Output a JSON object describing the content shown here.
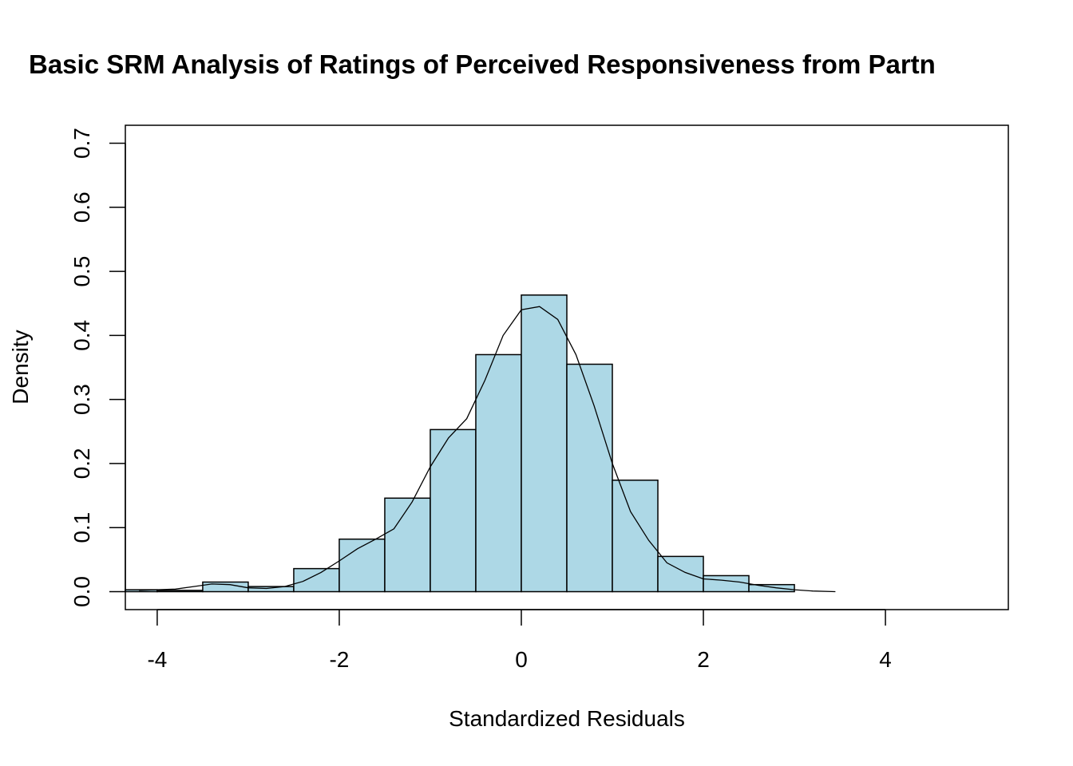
{
  "chart_data": {
    "type": "bar",
    "title": "Basic SRM Analysis of Ratings of Perceived Responsiveness from Partn",
    "xlabel": "Standardized Residuals",
    "ylabel": "Density",
    "xlim": [
      -4.35,
      5.35
    ],
    "ylim": [
      -0.028,
      0.728
    ],
    "x_ticks": [
      -4,
      -2,
      0,
      2,
      4
    ],
    "x_tick_labels": [
      "-4",
      "-2",
      "0",
      "2",
      "4"
    ],
    "y_ticks": [
      0.0,
      0.1,
      0.2,
      0.3,
      0.4,
      0.5,
      0.6,
      0.7
    ],
    "y_tick_labels": [
      "0.0",
      "0.1",
      "0.2",
      "0.3",
      "0.4",
      "0.5",
      "0.6",
      "0.7"
    ],
    "bar_fill": "#add8e6",
    "bar_stroke": "#000000",
    "bins": [
      {
        "start": -4.5,
        "end": -4.0,
        "density": 0.003
      },
      {
        "start": -4.0,
        "end": -3.5,
        "density": 0.002
      },
      {
        "start": -3.5,
        "end": -3.0,
        "density": 0.015
      },
      {
        "start": -3.0,
        "end": -2.5,
        "density": 0.008
      },
      {
        "start": -2.5,
        "end": -2.0,
        "density": 0.036
      },
      {
        "start": -2.0,
        "end": -1.5,
        "density": 0.082
      },
      {
        "start": -1.5,
        "end": -1.0,
        "density": 0.146
      },
      {
        "start": -1.0,
        "end": -0.5,
        "density": 0.253
      },
      {
        "start": -0.5,
        "end": 0.0,
        "density": 0.37
      },
      {
        "start": 0.0,
        "end": 0.5,
        "density": 0.463
      },
      {
        "start": 0.5,
        "end": 1.0,
        "density": 0.355
      },
      {
        "start": 1.0,
        "end": 1.5,
        "density": 0.174
      },
      {
        "start": 1.5,
        "end": 2.0,
        "density": 0.055
      },
      {
        "start": 2.0,
        "end": 2.5,
        "density": 0.025
      },
      {
        "start": 2.5,
        "end": 3.0,
        "density": 0.011
      }
    ],
    "density_curve": {
      "x": [
        -4.6,
        -4.2,
        -3.8,
        -3.6,
        -3.4,
        -3.2,
        -3.0,
        -2.8,
        -2.6,
        -2.4,
        -2.2,
        -2.0,
        -1.8,
        -1.6,
        -1.4,
        -1.2,
        -1.0,
        -0.8,
        -0.6,
        -0.4,
        -0.2,
        0.0,
        0.2,
        0.4,
        0.6,
        0.8,
        1.0,
        1.2,
        1.4,
        1.6,
        1.8,
        2.0,
        2.2,
        2.4,
        2.6,
        2.8,
        3.0,
        3.2,
        3.45
      ],
      "y": [
        0.001,
        0.002,
        0.004,
        0.008,
        0.012,
        0.011,
        0.006,
        0.005,
        0.008,
        0.016,
        0.03,
        0.048,
        0.067,
        0.082,
        0.098,
        0.14,
        0.195,
        0.24,
        0.27,
        0.33,
        0.4,
        0.44,
        0.445,
        0.425,
        0.37,
        0.29,
        0.2,
        0.125,
        0.08,
        0.045,
        0.03,
        0.02,
        0.018,
        0.015,
        0.01,
        0.006,
        0.003,
        0.001,
        0.0
      ]
    }
  }
}
